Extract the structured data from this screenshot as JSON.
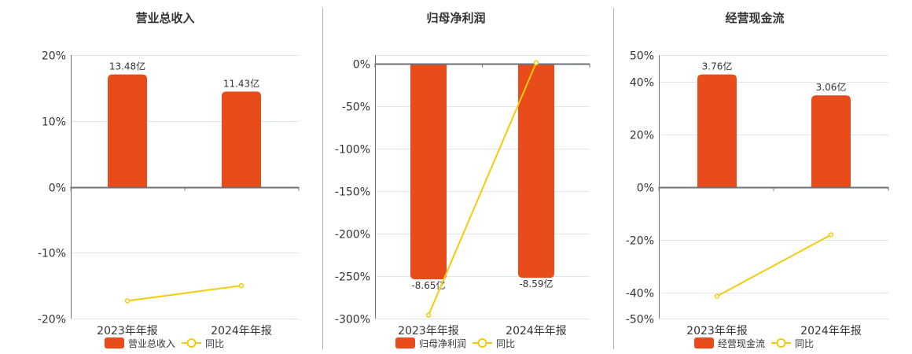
{
  "colors": {
    "bar": "#e84c1b",
    "line": "#f2cc0c",
    "grid": "#e0e6f1",
    "axis": "#6e7079",
    "separator": "#b0b0b0"
  },
  "chart_data": [
    {
      "type": "bar+line",
      "title": "营业总收入",
      "categories": [
        "2023年年报",
        "2024年年报"
      ],
      "bar_series": {
        "name": "营业总收入",
        "values": [
          13.48,
          11.43
        ],
        "labels": [
          "13.48亿",
          "11.43亿"
        ],
        "unit": "亿"
      },
      "line_series": {
        "name": "同比",
        "values": [
          -17.3,
          -15.0
        ],
        "unit": "%"
      },
      "y_ticks": [
        20,
        10,
        0,
        -10,
        -20
      ],
      "y_tick_labels": [
        "20%",
        "10%",
        "0%",
        "-10%",
        "-20%"
      ],
      "ylim": [
        -20,
        20
      ],
      "grid": true,
      "legend": "bottom"
    },
    {
      "type": "bar+line",
      "title": "归母净利润",
      "categories": [
        "2023年年报",
        "2024年年报"
      ],
      "bar_series": {
        "name": "归母净利润",
        "values": [
          -8.65,
          -8.59
        ],
        "labels": [
          "-8.65亿",
          "-8.59亿"
        ],
        "unit": "亿"
      },
      "line_series": {
        "name": "同比",
        "values": [
          -296,
          1
        ],
        "unit": "%"
      },
      "y_ticks": [
        0,
        -50,
        -100,
        -150,
        -200,
        -250,
        -300
      ],
      "y_tick_labels": [
        "0%",
        "-50%",
        "-100%",
        "-150%",
        "-200%",
        "-250%",
        "-300%"
      ],
      "ylim": [
        -300,
        10
      ],
      "grid": true,
      "legend": "bottom"
    },
    {
      "type": "bar+line",
      "title": "经营现金流",
      "categories": [
        "2023年年报",
        "2024年年报"
      ],
      "bar_series": {
        "name": "经营现金流",
        "values": [
          3.76,
          3.06
        ],
        "labels": [
          "3.76亿",
          "3.06亿"
        ],
        "unit": "亿"
      },
      "line_series": {
        "name": "同比",
        "values": [
          -41.5,
          -18.2
        ],
        "unit": "%"
      },
      "y_ticks": [
        50,
        40,
        20,
        0,
        -20,
        -40,
        -50
      ],
      "y_tick_labels": [
        "50%",
        "40%",
        "20%",
        "0%",
        "-20%",
        "-40%",
        "-50%"
      ],
      "ylim": [
        -50,
        50
      ],
      "grid": true,
      "legend": "bottom"
    }
  ]
}
